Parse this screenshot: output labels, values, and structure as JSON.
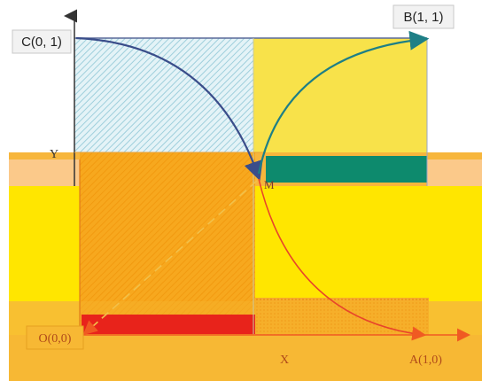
{
  "points": {
    "c": "C(0, 1)",
    "b": "B(1, 1)",
    "y": "Y",
    "m": "M",
    "o": "O(0,0)",
    "x": "X",
    "a": "A(1,0)"
  },
  "colors": {
    "yellow": "#ffe600",
    "yellow_soft": "#f8e24a",
    "orange_band": "#f7b63c",
    "orange_light": "#fbc98a",
    "orange_top": "#f6a81c",
    "teal": "#0d8a6d",
    "red": "#e8231b",
    "blue_curve": "#3a4d8a",
    "teal_curve": "#1e7f86",
    "red_axis": "#f05a22",
    "hatch_blue": "#bfe3ec"
  }
}
